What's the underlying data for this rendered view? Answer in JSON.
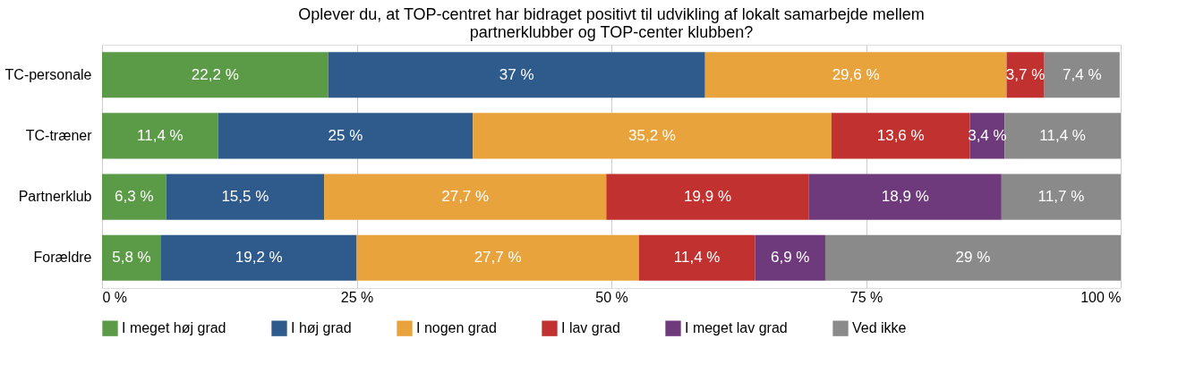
{
  "chart_data": {
    "type": "bar",
    "orientation": "horizontal",
    "stacked": true,
    "title": "Oplever du, at TOP-centret har bidraget positivt til udvikling af lokalt samarbejde mellem partnerklubber og TOP-center klubben?",
    "categories": [
      "TC-personale",
      "TC-træner",
      "Partnerklub",
      "Forældre"
    ],
    "series": [
      {
        "name": "I meget høj grad",
        "color": "#5b9a47",
        "values": [
          22.2,
          11.4,
          6.3,
          5.8
        ],
        "value_labels": [
          "22,2 %",
          "11,4 %",
          "6,3 %",
          "5,8 %"
        ]
      },
      {
        "name": "I høj grad",
        "color": "#2e5a8c",
        "values": [
          37,
          25,
          15.5,
          19.2
        ],
        "value_labels": [
          "37 %",
          "25 %",
          "15,5 %",
          "19,2 %"
        ]
      },
      {
        "name": "I nogen grad",
        "color": "#e8a33d",
        "values": [
          29.6,
          35.2,
          27.7,
          27.7
        ],
        "value_labels": [
          "29,6 %",
          "35,2 %",
          "27,7 %",
          "27,7 %"
        ]
      },
      {
        "name": "I lav grad",
        "color": "#c0312f",
        "values": [
          3.7,
          13.6,
          19.9,
          11.4
        ],
        "value_labels": [
          "3,7 %",
          "13,6 %",
          "19,9 %",
          "11,4 %"
        ]
      },
      {
        "name": "I meget lav grad",
        "color": "#6f3a7c",
        "values": [
          null,
          3.4,
          18.9,
          6.9
        ],
        "value_labels": [
          null,
          "3,4 %",
          "18,9 %",
          "6,9 %"
        ]
      },
      {
        "name": "Ved ikke",
        "color": "#8a8a8a",
        "values": [
          7.4,
          11.4,
          11.7,
          29
        ],
        "value_labels": [
          "7,4 %",
          "11,4 %",
          "11,7 %",
          "29 %"
        ]
      }
    ],
    "xlim": [
      0,
      100
    ],
    "xticks": [
      {
        "value": 0,
        "label": "0 %"
      },
      {
        "value": 25,
        "label": "25 %"
      },
      {
        "value": 50,
        "label": "50 %"
      },
      {
        "value": 75,
        "label": "75 %"
      },
      {
        "value": 100,
        "label": "100 %"
      }
    ],
    "grid": "x",
    "legend": "bottom"
  }
}
